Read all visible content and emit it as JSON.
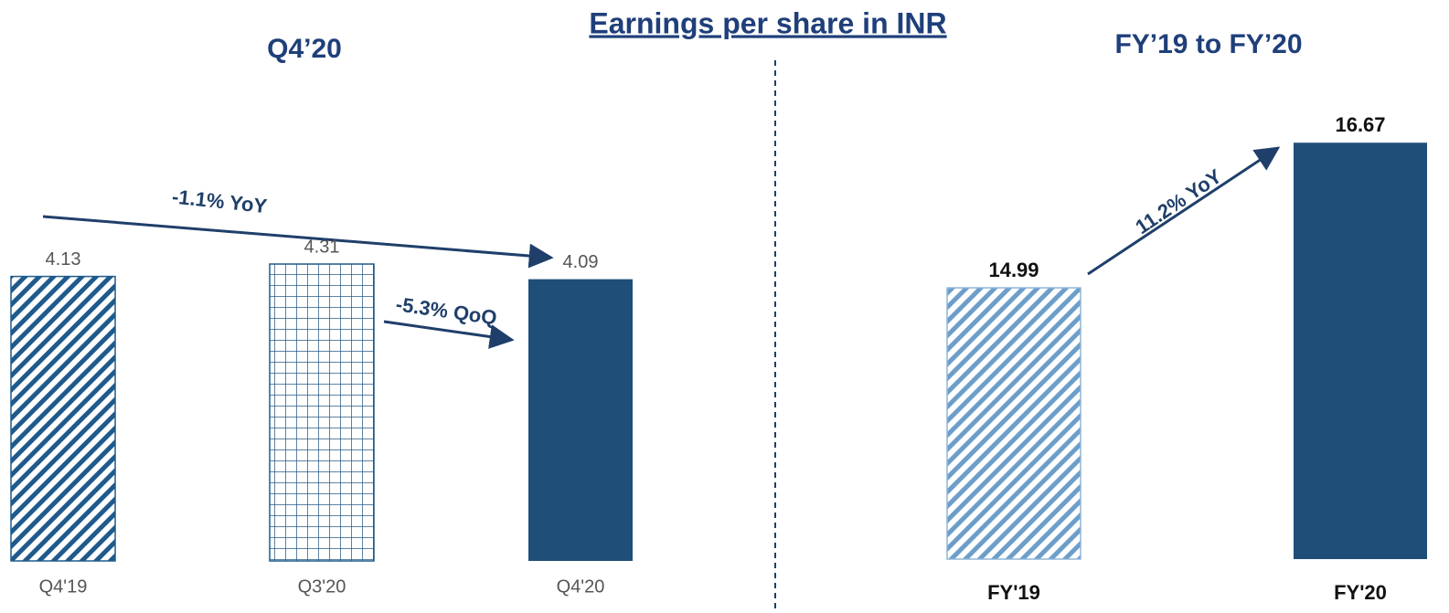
{
  "title": "Earnings per share in INR",
  "chart_data": [
    {
      "type": "bar",
      "title": "Q4’20",
      "categories": [
        "Q4'19",
        "Q3'20",
        "Q4'20"
      ],
      "values": [
        4.13,
        4.31,
        4.09
      ],
      "patterns": [
        "hatch",
        "grid",
        "solid"
      ],
      "color": "#1f4e79",
      "ylim": [
        0,
        5
      ],
      "annotations": [
        "-1.1% YoY",
        "-5.3% QoQ"
      ]
    },
    {
      "type": "bar",
      "title": "FY’19 to FY’20",
      "categories": [
        "FY'19",
        "FY'20"
      ],
      "values": [
        14.99,
        16.67
      ],
      "patterns": [
        "hatch",
        "solid"
      ],
      "color": "#1f4e79",
      "ylim": [
        11.85,
        17
      ],
      "annotations": [
        "11.2% YoY"
      ]
    }
  ]
}
